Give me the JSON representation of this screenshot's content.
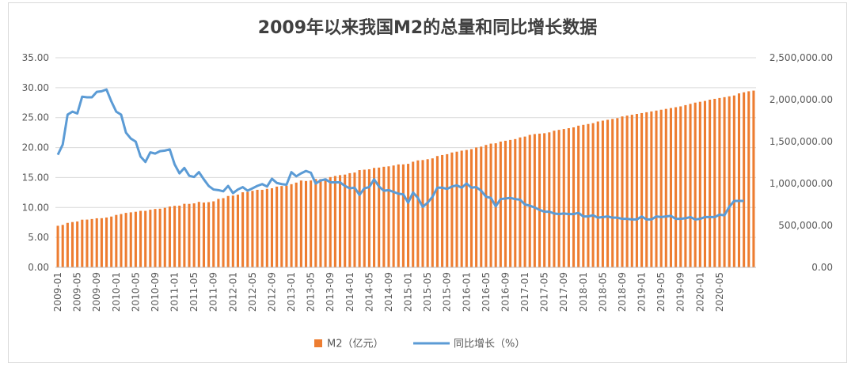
{
  "chart_data": {
    "type": "bar",
    "title": "2009年以来我国M2的总量和同比增长数据",
    "ylim_left": [
      0,
      35
    ],
    "ylim_right": [
      0,
      2500000
    ],
    "left_ticks": [
      "0.00",
      "5.00",
      "10.00",
      "15.00",
      "20.00",
      "25.00",
      "30.00",
      "35.00"
    ],
    "right_ticks": [
      "0.00",
      "500,000.00",
      "1,000,000.00",
      "1,500,000.00",
      "2,000,000.00",
      "2,500,000.00"
    ],
    "x_tick_labels": [
      "2009-01",
      "2009-05",
      "2009-09",
      "2010-01",
      "2010-05",
      "2010-09",
      "2011-01",
      "2011-05",
      "2011-09",
      "2012-01",
      "2012-05",
      "2012-09",
      "2013-01",
      "2013-05",
      "2013-09",
      "2014-01",
      "2014-05",
      "2014-09",
      "2015-01",
      "2015-05",
      "2015-09",
      "2016-01",
      "2016-05",
      "2016-09",
      "2017-01",
      "2017-05",
      "2017-09",
      "2018-01",
      "2018-05",
      "2018-09",
      "2019-01",
      "2019-05",
      "2019-09",
      "2020-01",
      "2020-05"
    ],
    "series": [
      {
        "name": "M2（亿元）",
        "type": "bar",
        "axis": "right",
        "color": "#ED7D31",
        "values": [
          496135,
          506708,
          530627,
          540481,
          547551,
          568916,
          570000,
          576699,
          585405,
          586643,
          594604,
          606225,
          625609,
          636073,
          649948,
          656562,
          663351,
          673921,
          674051,
          687506,
          696471,
          699777,
          710339,
          725852,
          733885,
          736130,
          758131,
          757385,
          763410,
          780821,
          772923,
          777828,
          787407,
          816829,
          825493,
          851591,
          855899,
          867171,
          895566,
          900049,
          912656,
          925000,
          924992,
          936400,
          943500,
          963000,
          970000,
          974159,
          992129,
          1011000,
          1035858,
          1030000,
          1036000,
          1054000,
          1053000,
          1062000,
          1077000,
          1090000,
          1100000,
          1106525,
          1123500,
          1131000,
          1160000,
          1165000,
          1170000,
          1186000,
          1190000,
          1200000,
          1205000,
          1215000,
          1228000,
          1228374,
          1235000,
          1260000,
          1276000,
          1280000,
          1290000,
          1300000,
          1328000,
          1340000,
          1350000,
          1370000,
          1380000,
          1392000,
          1400000,
          1410000,
          1430000,
          1440000,
          1460000,
          1476000,
          1480000,
          1500000,
          1510000,
          1520000,
          1530000,
          1550000,
          1560000,
          1580000,
          1590000,
          1595000,
          1600000,
          1610000,
          1630000,
          1640000,
          1650000,
          1660000,
          1670000,
          1690000,
          1700000,
          1710000,
          1720000,
          1740000,
          1750000,
          1760000,
          1770000,
          1780000,
          1800000,
          1810000,
          1820000,
          1830000,
          1840000,
          1850000,
          1860000,
          1870000,
          1880000,
          1890000,
          1900000,
          1910000,
          1920000,
          1935000,
          1950000,
          1965000,
          1975000,
          1985000,
          2000000,
          2010000,
          2020000,
          2030000,
          2040000,
          2050000,
          2075000,
          2088000,
          2100000,
          2108000
        ]
      },
      {
        "name": "同比增长（%）",
        "type": "line",
        "axis": "left",
        "color": "#5B9BD5",
        "values": [
          18.8,
          20.5,
          25.5,
          26.0,
          25.7,
          28.5,
          28.4,
          28.4,
          29.3,
          29.4,
          29.7,
          27.7,
          26.0,
          25.5,
          22.5,
          21.5,
          21.0,
          18.5,
          17.6,
          19.2,
          19.0,
          19.4,
          19.5,
          19.7,
          17.2,
          15.7,
          16.6,
          15.3,
          15.1,
          15.9,
          14.7,
          13.6,
          13.0,
          12.9,
          12.7,
          13.6,
          12.4,
          13.0,
          13.4,
          12.8,
          13.2,
          13.6,
          13.9,
          13.5,
          14.8,
          14.1,
          13.9,
          13.8,
          15.9,
          15.2,
          15.7,
          16.1,
          15.8,
          14.0,
          14.5,
          14.7,
          14.2,
          14.2,
          14.2,
          13.6,
          13.2,
          13.3,
          12.1,
          13.2,
          13.4,
          14.7,
          13.5,
          12.8,
          12.9,
          12.6,
          12.3,
          12.2,
          10.8,
          12.5,
          11.6,
          10.1,
          10.8,
          11.8,
          13.3,
          13.3,
          13.1,
          13.5,
          13.7,
          13.3,
          14.0,
          13.3,
          13.4,
          12.8,
          11.8,
          11.6,
          10.2,
          11.4,
          11.5,
          11.6,
          11.4,
          11.3,
          10.5,
          10.3,
          10.0,
          9.6,
          9.3,
          9.3,
          9.0,
          8.9,
          9.0,
          8.9,
          8.9,
          9.1,
          8.5,
          8.5,
          8.7,
          8.3,
          8.4,
          8.5,
          8.3,
          8.3,
          8.1,
          8.1,
          8.0,
          8.0,
          8.5,
          8.0,
          8.0,
          8.5,
          8.4,
          8.5,
          8.6,
          8.1,
          8.1,
          8.2,
          8.4,
          8.0,
          8.1,
          8.4,
          8.4,
          8.4,
          8.8,
          8.7,
          10.1,
          11.1,
          11.1,
          11.1
        ]
      }
    ]
  }
}
